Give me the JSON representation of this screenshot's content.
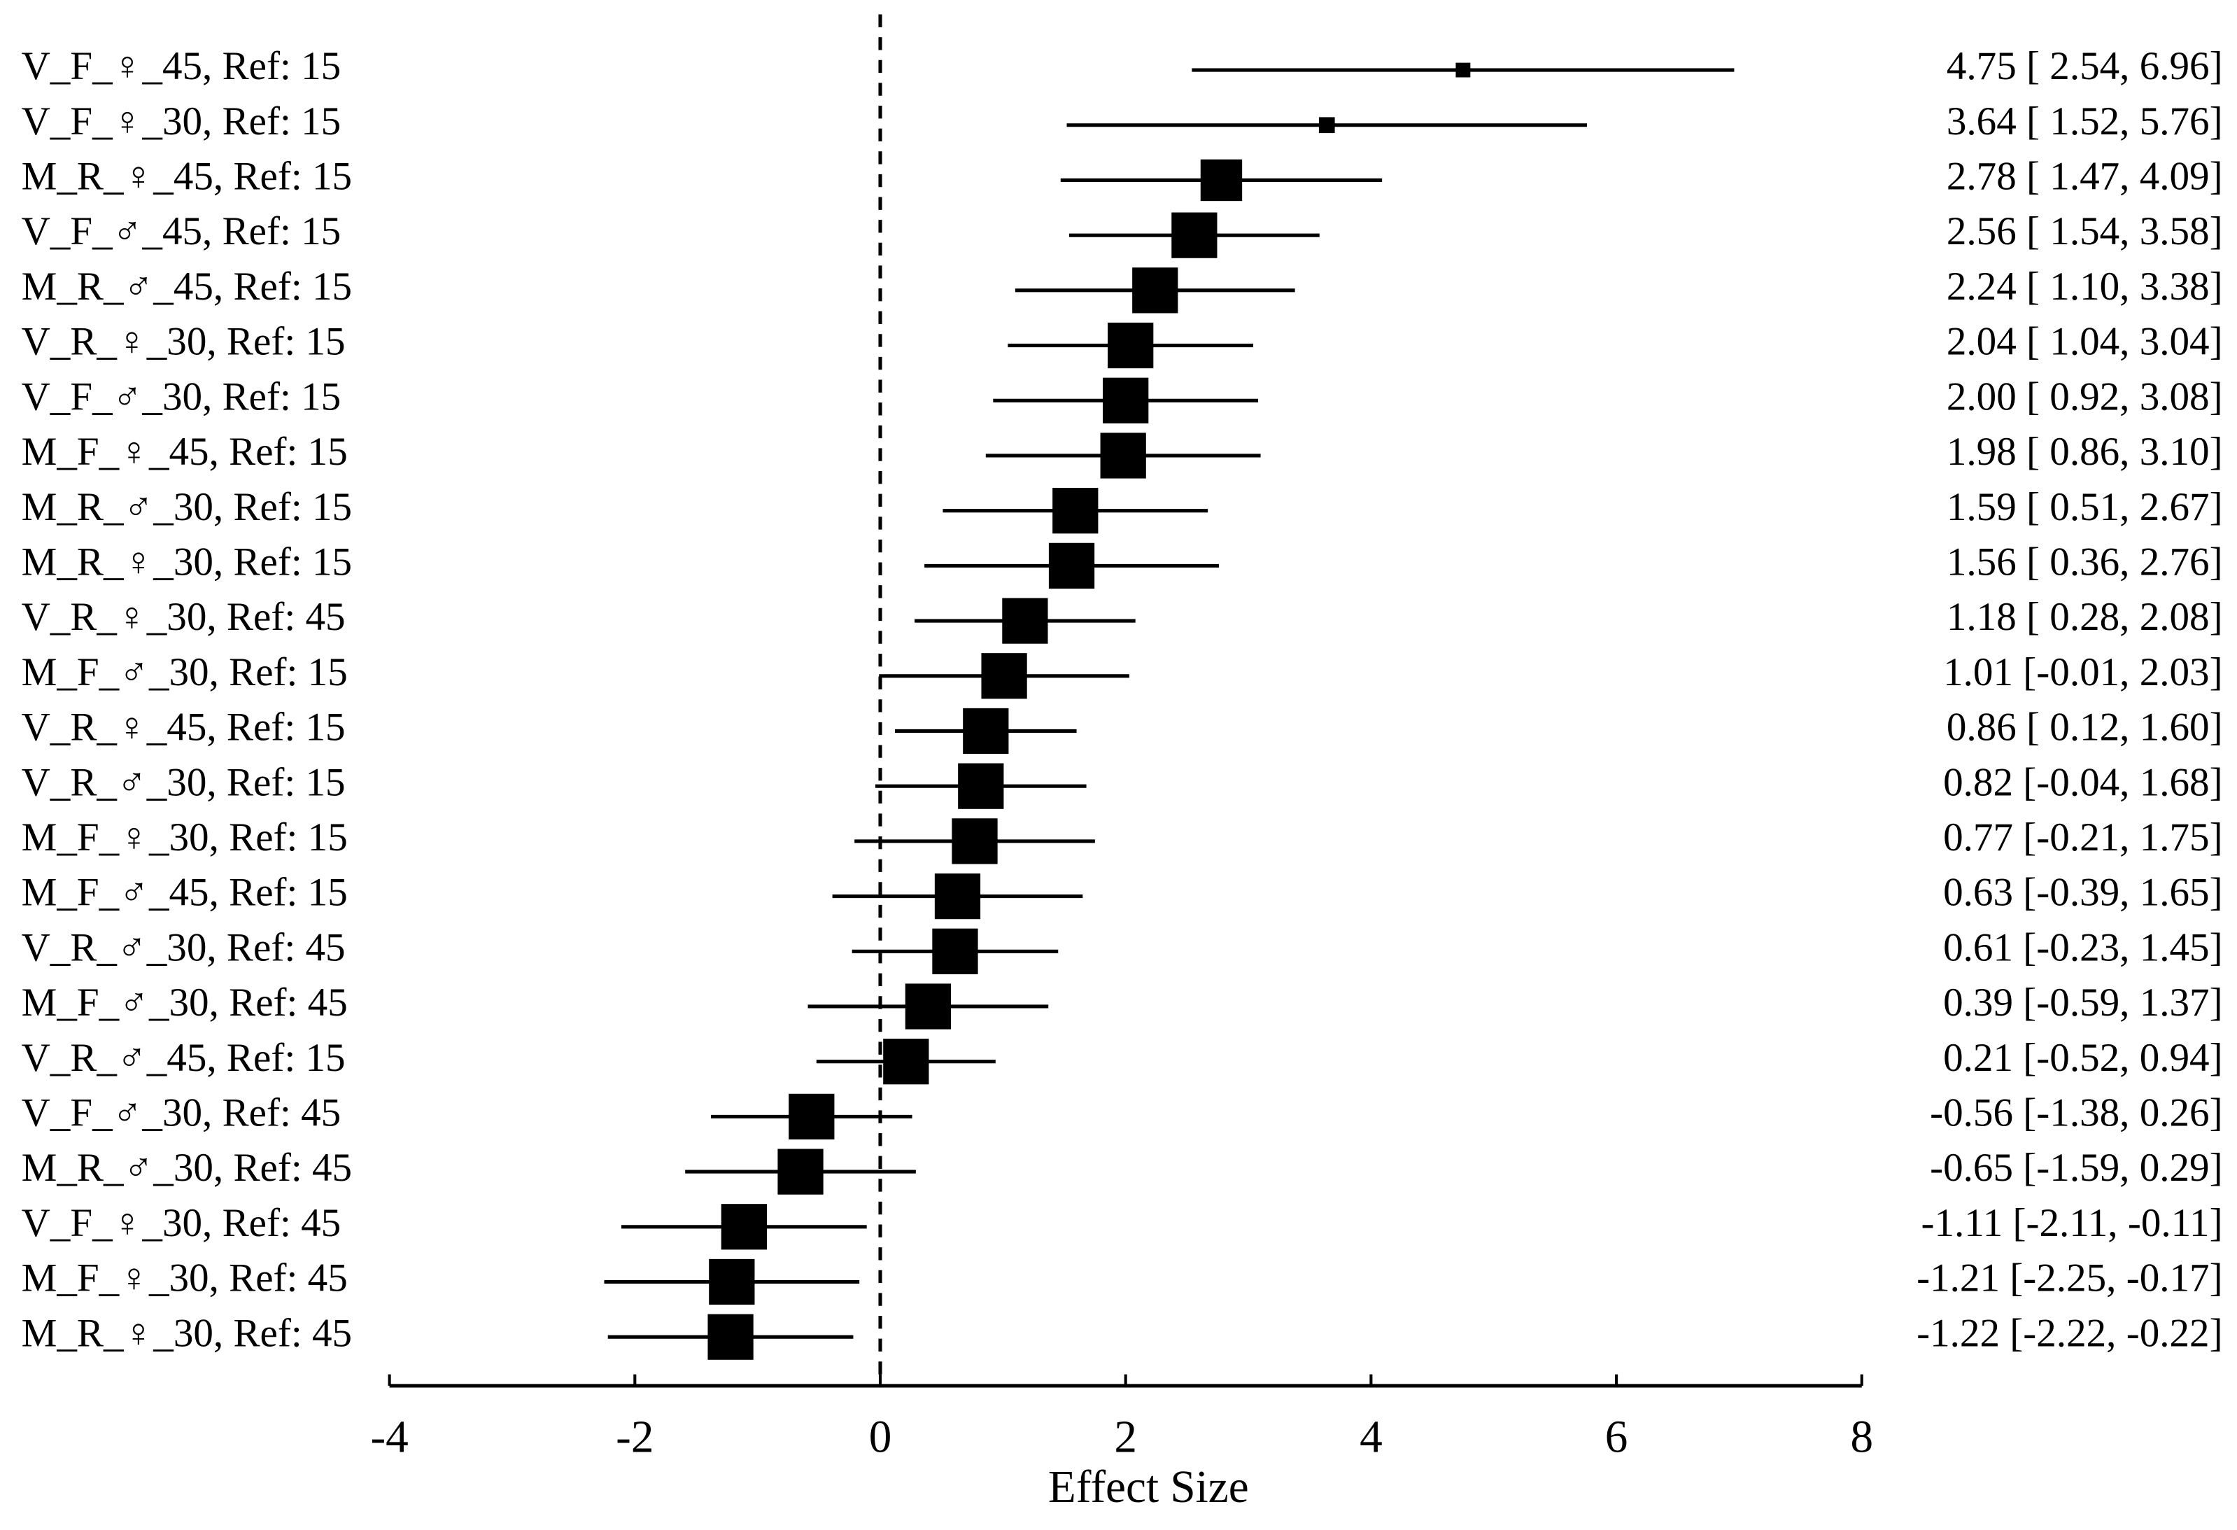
{
  "chart_data": {
    "type": "forest",
    "categories": [
      "V_F_♀_45, Ref: 15",
      "V_F_♀_30, Ref: 15",
      "M_R_♀_45, Ref: 15",
      "V_F_♂_45, Ref: 15",
      "M_R_♂_45, Ref: 15",
      "V_R_♀_30, Ref: 15",
      "V_F_♂_30, Ref: 15",
      "M_F_♀_45, Ref: 15",
      "M_R_♂_30, Ref: 15",
      "M_R_♀_30, Ref: 15",
      "V_R_♀_30, Ref: 45",
      "M_F_♂_30, Ref: 15",
      "V_R_♀_45, Ref: 15",
      "V_R_♂_30, Ref: 15",
      "M_F_♀_30, Ref: 15",
      "M_F_♂_45, Ref: 15",
      "V_R_♂_30, Ref: 45",
      "M_F_♂_30, Ref: 45",
      "V_R_♂_45, Ref: 15",
      "V_F_♂_30, Ref: 45",
      "M_R_♂_30, Ref: 45",
      "V_F_♀_30, Ref: 45",
      "M_F_♀_30, Ref: 45",
      "M_R_♀_30, Ref: 45"
    ],
    "values": [
      4.75,
      3.64,
      2.78,
      2.56,
      2.24,
      2.04,
      2.0,
      1.98,
      1.59,
      1.56,
      1.18,
      1.01,
      0.86,
      0.82,
      0.77,
      0.63,
      0.61,
      0.39,
      0.21,
      -0.56,
      -0.65,
      -1.11,
      -1.21,
      -1.22
    ],
    "lower": [
      2.54,
      1.52,
      1.47,
      1.54,
      1.1,
      1.04,
      0.92,
      0.86,
      0.51,
      0.36,
      0.28,
      -0.01,
      0.12,
      -0.04,
      -0.21,
      -0.39,
      -0.23,
      -0.59,
      -0.52,
      -1.38,
      -1.59,
      -2.11,
      -2.25,
      -2.22
    ],
    "upper": [
      6.96,
      5.76,
      4.09,
      3.58,
      3.38,
      3.04,
      3.08,
      3.1,
      2.67,
      2.76,
      2.08,
      2.03,
      1.6,
      1.68,
      1.75,
      1.65,
      1.45,
      1.37,
      0.94,
      0.26,
      0.29,
      -0.11,
      -0.17,
      -0.22
    ],
    "value_labels": [
      "4.75 [ 2.54, 6.96]",
      "3.64 [ 1.52, 5.76]",
      "2.78 [ 1.47, 4.09]",
      "2.56 [ 1.54, 3.58]",
      "2.24 [ 1.10, 3.38]",
      "2.04 [ 1.04, 3.04]",
      "2.00 [ 0.92, 3.08]",
      "1.98 [ 0.86, 3.10]",
      "1.59 [ 0.51, 2.67]",
      "1.56 [ 0.36, 2.76]",
      "1.18 [ 0.28, 2.08]",
      "1.01 [-0.01, 2.03]",
      "0.86 [ 0.12, 1.60]",
      "0.82 [-0.04, 1.68]",
      "0.77 [-0.21, 1.75]",
      "0.63 [-0.39, 1.65]",
      "0.61 [-0.23, 1.45]",
      "0.39 [-0.59, 1.37]",
      "0.21 [-0.52, 0.94]",
      "-0.56 [-1.38, 0.26]",
      "-0.65 [-1.59, 0.29]",
      "-1.11 [-2.11, -0.11]",
      "-1.21 [-2.25, -0.17]",
      "-1.22 [-2.22, -0.22]"
    ],
    "color": "#000000",
    "x_label": "Effect Size",
    "xlim": [
      -4,
      8
    ],
    "xticks": [
      -4,
      -2,
      0,
      2,
      4,
      6,
      8
    ]
  }
}
